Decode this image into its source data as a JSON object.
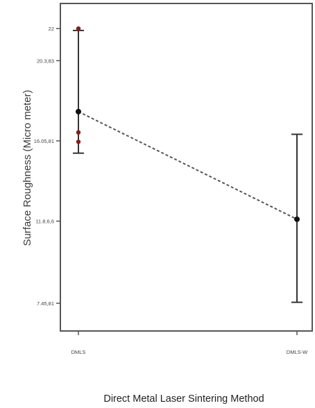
{
  "chart_data": {
    "type": "line",
    "title": "",
    "xlabel": "Direct Metal Laser Sintering Method",
    "ylabel": "Surface Roughness (Micro meter)",
    "categories": [
      "DMLS",
      "DMLS-W"
    ],
    "ylim": [
      5.98,
      23.33
    ],
    "yticks": [
      {
        "value": 7.45,
        "label": "7.45,81"
      },
      {
        "value": 11.8,
        "label": "11.8,6,6"
      },
      {
        "value": 16.05,
        "label": "16.05,81"
      },
      {
        "value": 20.3,
        "label": "20.3,83"
      },
      {
        "value": 22,
        "label": "22"
      }
    ],
    "means": [
      17.6,
      11.9
    ],
    "error_bars": [
      {
        "category": "DMLS",
        "low": 15.4,
        "high": 21.9
      },
      {
        "category": "DMLS-W",
        "low": 7.5,
        "high": 16.4
      }
    ],
    "points": [
      {
        "category": "DMLS",
        "y": 22.0
      },
      {
        "category": "DMLS",
        "y": 16.5
      },
      {
        "category": "DMLS",
        "y": 16.0
      },
      {
        "category": "DMLS-W",
        "y": 11.9
      }
    ],
    "mean_line_style": "dashed",
    "grid": false,
    "colors": {
      "mean": "#111111",
      "point": "#8b1a1a",
      "line": "#555555",
      "frame": "#555555"
    }
  }
}
